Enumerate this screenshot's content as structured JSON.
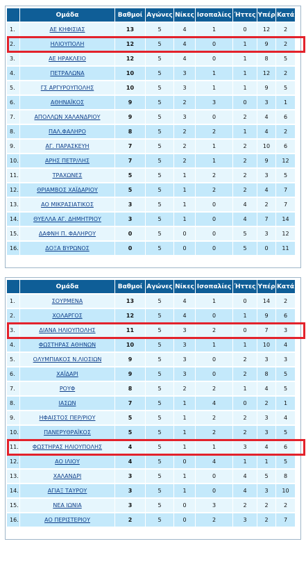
{
  "headers": [
    "Ομάδα",
    "Βαθμοί",
    "Αγώνες",
    "Νίκες",
    "Ισοπαλίες",
    "Ήττες",
    "Υπέρ",
    "Κατά"
  ],
  "highlight_color": "#e3222b",
  "header_color": "#0f5e97",
  "tables": [
    {
      "rows": [
        {
          "pos": "1.",
          "team": "ΑΕ ΚΗΦΙΣΙΑΣ",
          "pts": "13",
          "g": "5",
          "w": "4",
          "d": "1",
          "l": "0",
          "f": "12",
          "a": "2"
        },
        {
          "pos": "2.",
          "team": "ΗΛΙΟΥΠΟΛΗ",
          "pts": "12",
          "g": "5",
          "w": "4",
          "d": "0",
          "l": "1",
          "f": "9",
          "a": "2"
        },
        {
          "pos": "3.",
          "team": "ΑΕ ΗΡΑΚΛΕΙΟ",
          "pts": "12",
          "g": "5",
          "w": "4",
          "d": "0",
          "l": "1",
          "f": "8",
          "a": "5"
        },
        {
          "pos": "4.",
          "team": "ΠΕΤΡΑΛΩΝΑ",
          "pts": "10",
          "g": "5",
          "w": "3",
          "d": "1",
          "l": "1",
          "f": "12",
          "a": "2"
        },
        {
          "pos": "5.",
          "team": "ΓΣ ΑΡΓΥΡΟΥΠΟΛΗΣ",
          "pts": "10",
          "g": "5",
          "w": "3",
          "d": "1",
          "l": "1",
          "f": "9",
          "a": "5"
        },
        {
          "pos": "6.",
          "team": "ΑΘΗΝΑΪΚΟΣ",
          "pts": "9",
          "g": "5",
          "w": "2",
          "d": "3",
          "l": "0",
          "f": "3",
          "a": "1"
        },
        {
          "pos": "7.",
          "team": "ΑΠΟΛΛΩΝ ΧΑΛΑΝΔΡΙΟΥ",
          "pts": "9",
          "g": "5",
          "w": "3",
          "d": "0",
          "l": "2",
          "f": "4",
          "a": "6"
        },
        {
          "pos": "8.",
          "team": "ΠΑΛ.ΦΑΛΗΡΟ",
          "pts": "8",
          "g": "5",
          "w": "2",
          "d": "2",
          "l": "1",
          "f": "4",
          "a": "2"
        },
        {
          "pos": "9.",
          "team": "ΑΓ. ΠΑΡΑΣΚΕΥΗ",
          "pts": "7",
          "g": "5",
          "w": "2",
          "d": "1",
          "l": "2",
          "f": "10",
          "a": "6"
        },
        {
          "pos": "10.",
          "team": "ΑΡΗΣ ΠΕΤΡ/ΛΗΣ",
          "pts": "7",
          "g": "5",
          "w": "2",
          "d": "1",
          "l": "2",
          "f": "9",
          "a": "12"
        },
        {
          "pos": "11.",
          "team": "ΤΡΑΧΩΝΕΣ",
          "pts": "5",
          "g": "5",
          "w": "1",
          "d": "2",
          "l": "2",
          "f": "3",
          "a": "5"
        },
        {
          "pos": "12.",
          "team": "ΘΡΙΑΜΒΟΣ ΧΑΪΔΑΡΙΟΥ",
          "pts": "5",
          "g": "5",
          "w": "1",
          "d": "2",
          "l": "2",
          "f": "4",
          "a": "7"
        },
        {
          "pos": "13.",
          "team": "ΑΟ ΜΙΚΡΑΣΙΑΤΙΚΟΣ",
          "pts": "3",
          "g": "5",
          "w": "1",
          "d": "0",
          "l": "4",
          "f": "2",
          "a": "7"
        },
        {
          "pos": "14.",
          "team": "ΘΥΕΛΛΑ ΑΓ. ΔΗΜΗΤΡΙΟΥ",
          "pts": "3",
          "g": "5",
          "w": "1",
          "d": "0",
          "l": "4",
          "f": "7",
          "a": "14"
        },
        {
          "pos": "15.",
          "team": "ΔΑΦΝΗ Π. ΦΑΛΗΡΟΥ",
          "pts": "0",
          "g": "5",
          "w": "0",
          "d": "0",
          "l": "5",
          "f": "3",
          "a": "12"
        },
        {
          "pos": "16.",
          "team": "ΔΟΞΑ ΒΥΡΩΝΟΣ",
          "pts": "0",
          "g": "5",
          "w": "0",
          "d": "0",
          "l": "5",
          "f": "0",
          "a": "11"
        }
      ],
      "highlighted_positions": [
        "2."
      ]
    },
    {
      "rows": [
        {
          "pos": "1.",
          "team": "ΣΟΥΡΜΕΝΑ",
          "pts": "13",
          "g": "5",
          "w": "4",
          "d": "1",
          "l": "0",
          "f": "14",
          "a": "2"
        },
        {
          "pos": "2.",
          "team": "ΧΟΛΑΡΓΟΣ",
          "pts": "12",
          "g": "5",
          "w": "4",
          "d": "0",
          "l": "1",
          "f": "9",
          "a": "6"
        },
        {
          "pos": "3.",
          "team": "ΔΙΑΝΑ ΗΛΙΟΥΠΟΛΗΣ",
          "pts": "11",
          "g": "5",
          "w": "3",
          "d": "2",
          "l": "0",
          "f": "7",
          "a": "3"
        },
        {
          "pos": "4.",
          "team": "ΦΩΣΤΗΡΑΣ ΑΘΗΝΩΝ",
          "pts": "10",
          "g": "5",
          "w": "3",
          "d": "1",
          "l": "1",
          "f": "10",
          "a": "4"
        },
        {
          "pos": "5.",
          "team": "ΟΛΥΜΠΙΑΚΟΣ Ν.ΛΙΟΣΙΩΝ",
          "pts": "9",
          "g": "5",
          "w": "3",
          "d": "0",
          "l": "2",
          "f": "3",
          "a": "3"
        },
        {
          "pos": "6.",
          "team": "ΧΑΪΔΑΡΙ",
          "pts": "9",
          "g": "5",
          "w": "3",
          "d": "0",
          "l": "2",
          "f": "8",
          "a": "5"
        },
        {
          "pos": "7.",
          "team": "ΡΟΥΦ",
          "pts": "8",
          "g": "5",
          "w": "2",
          "d": "2",
          "l": "1",
          "f": "4",
          "a": "5"
        },
        {
          "pos": "8.",
          "team": "ΙΑΣΩΝ",
          "pts": "7",
          "g": "5",
          "w": "1",
          "d": "4",
          "l": "0",
          "f": "2",
          "a": "1"
        },
        {
          "pos": "9.",
          "team": "ΗΦΑΙΣΤΟΣ ΠΕΡ/ΡΙΟΥ",
          "pts": "5",
          "g": "5",
          "w": "1",
          "d": "2",
          "l": "2",
          "f": "3",
          "a": "4"
        },
        {
          "pos": "10.",
          "team": "ΠΑΝΕΡΥΘΡΑΪΚΟΣ",
          "pts": "5",
          "g": "5",
          "w": "1",
          "d": "2",
          "l": "2",
          "f": "3",
          "a": "5"
        },
        {
          "pos": "11.",
          "team": "ΦΩΣΤΗΡΑΣ ΗΛΙΟΥΠΟΛΗΣ",
          "pts": "4",
          "g": "5",
          "w": "1",
          "d": "1",
          "l": "3",
          "f": "4",
          "a": "6"
        },
        {
          "pos": "12.",
          "team": "ΑΟ ΙΛΙΟΥ",
          "pts": "4",
          "g": "5",
          "w": "0",
          "d": "4",
          "l": "1",
          "f": "1",
          "a": "5"
        },
        {
          "pos": "13.",
          "team": "ΧΑΛΑΝΔΡΙ",
          "pts": "3",
          "g": "5",
          "w": "1",
          "d": "0",
          "l": "4",
          "f": "5",
          "a": "8"
        },
        {
          "pos": "14.",
          "team": "ΑΓΙΑΞ ΤΑΥΡΟΥ",
          "pts": "3",
          "g": "5",
          "w": "1",
          "d": "0",
          "l": "4",
          "f": "3",
          "a": "10"
        },
        {
          "pos": "15.",
          "team": "ΝΕΑ ΙΩΝΙΑ",
          "pts": "3",
          "g": "5",
          "w": "0",
          "d": "3",
          "l": "2",
          "f": "2",
          "a": "2"
        },
        {
          "pos": "16.",
          "team": "ΑΟ ΠΕΡΙΣΤΕΡΙΟΥ",
          "pts": "2",
          "g": "5",
          "w": "0",
          "d": "2",
          "l": "3",
          "f": "2",
          "a": "7"
        }
      ],
      "highlighted_positions": [
        "3.",
        "11."
      ]
    }
  ]
}
